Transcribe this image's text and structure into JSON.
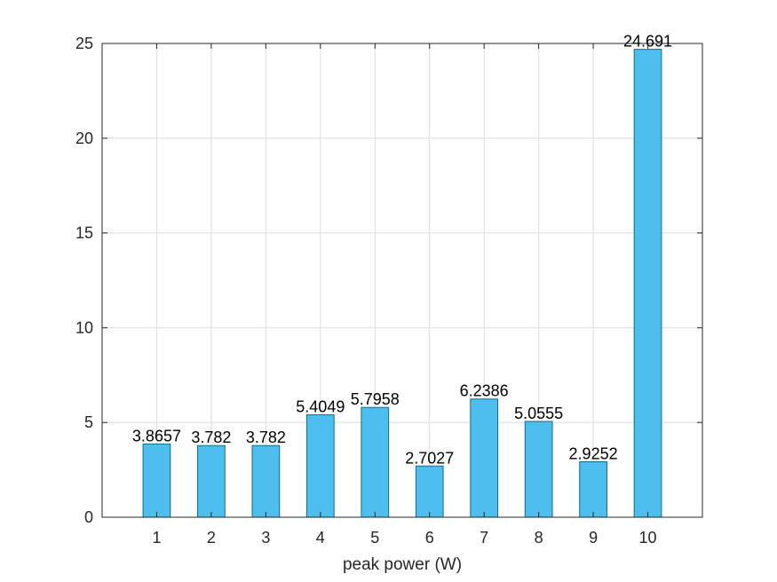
{
  "chart_data": {
    "type": "bar",
    "categories": [
      "1",
      "2",
      "3",
      "4",
      "5",
      "6",
      "7",
      "8",
      "9",
      "10"
    ],
    "values": [
      3.8657,
      3.782,
      3.782,
      5.4049,
      5.7958,
      2.7027,
      6.2386,
      5.0555,
      2.9252,
      24.691
    ],
    "data_labels": [
      "3.8657",
      "3.782",
      "3.782",
      "5.4049",
      "5.7958",
      "2.7027",
      "6.2386",
      "5.0555",
      "2.9252",
      "24.691"
    ],
    "xlabel": "peak power (W)",
    "ylabel": "",
    "ylim": [
      0,
      25
    ],
    "yticks": [
      "0",
      "5",
      "10",
      "15",
      "20",
      "25"
    ],
    "grid": true,
    "colors": {
      "bar_fill": "#4DBEEE",
      "bar_edge": "#0E6E8C",
      "axis": "#262626",
      "grid": "#dcdcdc"
    }
  }
}
